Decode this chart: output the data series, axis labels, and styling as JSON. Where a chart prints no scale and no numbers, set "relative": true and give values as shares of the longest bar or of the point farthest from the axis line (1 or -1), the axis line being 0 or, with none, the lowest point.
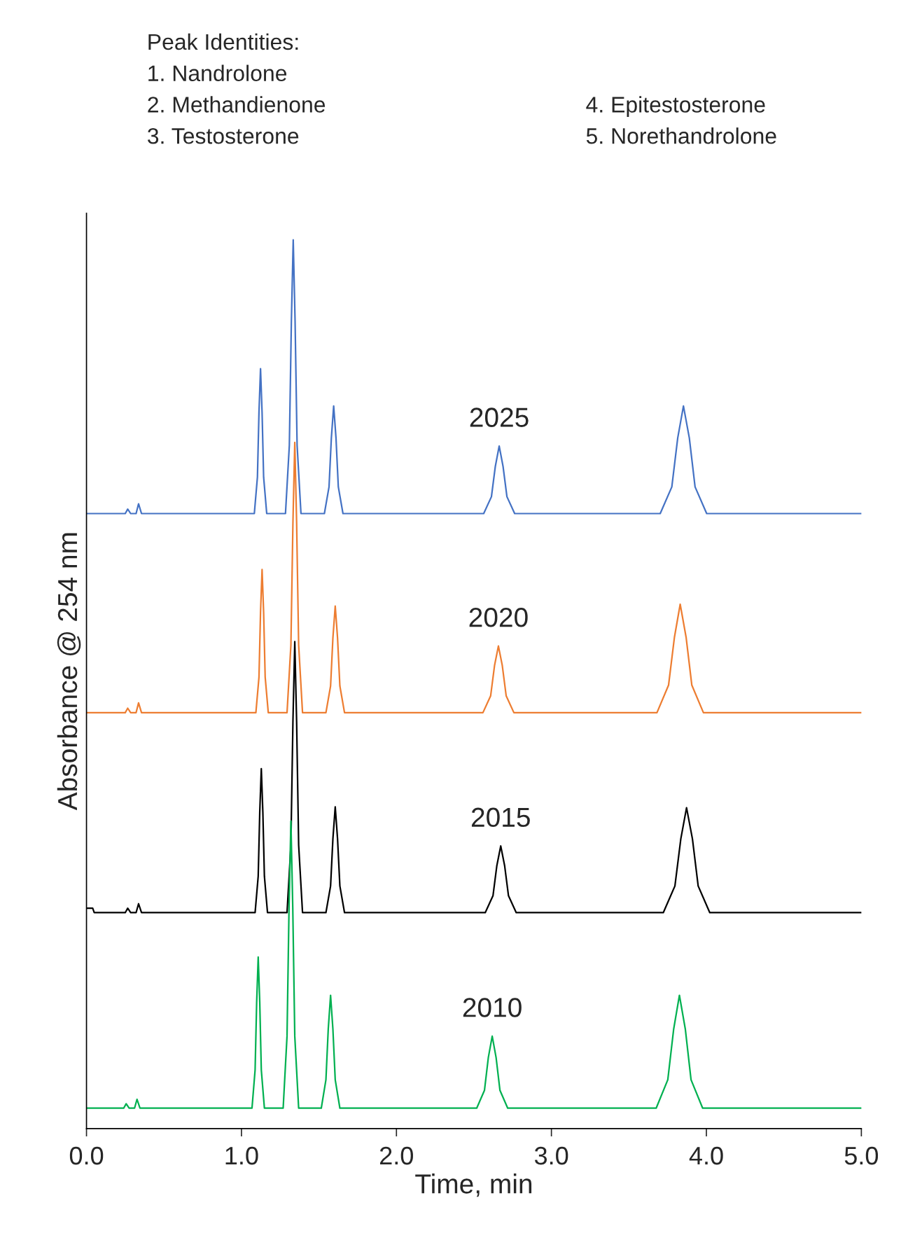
{
  "chart_data": {
    "type": "line",
    "relative": true,
    "xlabel": "Time, min",
    "ylabel": "Absorbance @ 254 nm",
    "xlim": [
      0,
      5
    ],
    "xticks": [
      {
        "value": 0,
        "label": "0.0"
      },
      {
        "value": 1,
        "label": "1.0"
      },
      {
        "value": 2,
        "label": "2.0"
      },
      {
        "value": 3,
        "label": "3.0"
      },
      {
        "value": 4,
        "label": "4.0"
      },
      {
        "value": 5,
        "label": "5.0"
      }
    ],
    "grid": false,
    "legend": false,
    "marker": "none",
    "line_style": "solid",
    "annotations": [
      "Peak Identities:",
      "1. Nandrolone",
      "2. Methandienone",
      "3. Testosterone",
      "4. Epitestosterone",
      "5. Norethandrolone"
    ],
    "series": [
      {
        "name": "2025",
        "color": "#4472c4",
        "x": [
          0,
          0.25,
          0.266,
          0.285,
          0.32,
          0.336,
          0.355,
          1.083,
          1.103,
          1.113,
          1.123,
          1.133,
          1.143,
          1.163,
          1.284,
          1.309,
          1.322,
          1.334,
          1.346,
          1.359,
          1.384,
          1.535,
          1.565,
          1.58,
          1.595,
          1.61,
          1.625,
          1.655,
          2.563,
          2.613,
          2.638,
          2.663,
          2.688,
          2.713,
          2.763,
          3.702,
          3.777,
          3.815,
          3.852,
          3.89,
          3.927,
          4.002,
          5.0
        ],
        "values": [
          0.692,
          0.692,
          0.697,
          0.692,
          0.692,
          0.703,
          0.692,
          0.692,
          0.733,
          0.806,
          0.855,
          0.806,
          0.733,
          0.692,
          0.692,
          0.769,
          0.908,
          1.0,
          0.908,
          0.769,
          0.692,
          0.692,
          0.722,
          0.777,
          0.813,
          0.777,
          0.722,
          0.692,
          0.692,
          0.711,
          0.745,
          0.768,
          0.745,
          0.711,
          0.692,
          0.692,
          0.722,
          0.777,
          0.813,
          0.777,
          0.722,
          0.692,
          0.692
        ]
      },
      {
        "name": "2020",
        "color": "#ed7d31",
        "x": [
          0,
          0.25,
          0.266,
          0.285,
          0.32,
          0.336,
          0.355,
          1.093,
          1.113,
          1.123,
          1.133,
          1.143,
          1.153,
          1.173,
          1.294,
          1.319,
          1.332,
          1.344,
          1.356,
          1.369,
          1.394,
          1.545,
          1.575,
          1.59,
          1.605,
          1.62,
          1.635,
          1.665,
          2.558,
          2.608,
          2.633,
          2.658,
          2.683,
          2.708,
          2.758,
          3.681,
          3.756,
          3.794,
          3.831,
          3.869,
          3.906,
          3.981,
          5.0
        ],
        "values": [
          0.468,
          0.468,
          0.473,
          0.468,
          0.468,
          0.479,
          0.468,
          0.468,
          0.508,
          0.581,
          0.629,
          0.581,
          0.508,
          0.468,
          0.468,
          0.544,
          0.681,
          0.772,
          0.681,
          0.544,
          0.468,
          0.468,
          0.498,
          0.552,
          0.588,
          0.552,
          0.498,
          0.468,
          0.468,
          0.487,
          0.521,
          0.543,
          0.521,
          0.487,
          0.468,
          0.468,
          0.499,
          0.553,
          0.59,
          0.553,
          0.499,
          0.468,
          0.468
        ]
      },
      {
        "name": "2015",
        "color": "#000000",
        "x": [
          0,
          0.04,
          0.05,
          0.25,
          0.266,
          0.285,
          0.32,
          0.336,
          0.355,
          1.088,
          1.108,
          1.118,
          1.128,
          1.138,
          1.148,
          1.168,
          1.294,
          1.319,
          1.332,
          1.344,
          1.356,
          1.369,
          1.394,
          1.545,
          1.575,
          1.59,
          1.605,
          1.62,
          1.635,
          1.665,
          2.573,
          2.623,
          2.648,
          2.673,
          2.698,
          2.723,
          2.773,
          3.722,
          3.797,
          3.835,
          3.872,
          3.91,
          3.947,
          4.022,
          5.0
        ],
        "values": [
          0.248,
          0.248,
          0.243,
          0.243,
          0.248,
          0.243,
          0.243,
          0.253,
          0.243,
          0.243,
          0.284,
          0.356,
          0.405,
          0.356,
          0.284,
          0.243,
          0.243,
          0.319,
          0.457,
          0.548,
          0.457,
          0.319,
          0.243,
          0.243,
          0.273,
          0.326,
          0.362,
          0.326,
          0.273,
          0.243,
          0.243,
          0.262,
          0.296,
          0.318,
          0.296,
          0.262,
          0.243,
          0.243,
          0.273,
          0.326,
          0.361,
          0.326,
          0.273,
          0.243,
          0.243
        ]
      },
      {
        "name": "2010",
        "color": "#00b050",
        "x": [
          0,
          0.24,
          0.256,
          0.275,
          0.31,
          0.326,
          0.345,
          1.068,
          1.088,
          1.098,
          1.108,
          1.118,
          1.128,
          1.148,
          1.269,
          1.294,
          1.307,
          1.319,
          1.331,
          1.344,
          1.369,
          1.515,
          1.545,
          1.56,
          1.575,
          1.59,
          1.605,
          1.635,
          2.518,
          2.568,
          2.593,
          2.618,
          2.643,
          2.668,
          2.718,
          3.676,
          3.751,
          3.789,
          3.826,
          3.864,
          3.901,
          3.976,
          5.0
        ],
        "values": [
          0.023,
          0.023,
          0.028,
          0.023,
          0.023,
          0.033,
          0.023,
          0.023,
          0.066,
          0.142,
          0.193,
          0.142,
          0.066,
          0.023,
          0.023,
          0.104,
          0.249,
          0.346,
          0.249,
          0.104,
          0.023,
          0.023,
          0.055,
          0.112,
          0.15,
          0.112,
          0.055,
          0.023,
          0.023,
          0.043,
          0.08,
          0.104,
          0.08,
          0.043,
          0.023,
          0.023,
          0.055,
          0.112,
          0.15,
          0.112,
          0.055,
          0.023,
          0.023
        ]
      }
    ]
  }
}
